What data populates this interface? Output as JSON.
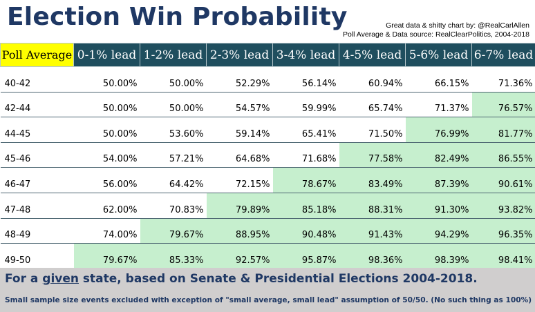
{
  "title": "Election Win Probability",
  "credit": {
    "line1": "Great data & shitty chart by: @RealCarlAllen",
    "line2": "Poll Average & Data source: RealClearPolitics, 2004-2018"
  },
  "colors": {
    "title": "#1f3864",
    "header_bg": "#1f4e5e",
    "corner_bg": "#ffff00",
    "highlight": "#c6efce",
    "footer_bg": "#d0cece"
  },
  "chart_data": {
    "type": "table",
    "title": "Election Win Probability",
    "row_header": "Poll Average",
    "columns": [
      "0-1% lead",
      "1-2% lead",
      "2-3% lead",
      "3-4% lead",
      "4-5% lead",
      "5-6% lead",
      "6-7% lead"
    ],
    "rows": [
      {
        "label": "40-42",
        "values": [
          "50.00%",
          "50.00%",
          "52.29%",
          "56.14%",
          "60.94%",
          "66.15%",
          "71.36%"
        ],
        "green_from": 7
      },
      {
        "label": "42-44",
        "values": [
          "50.00%",
          "50.00%",
          "54.57%",
          "59.99%",
          "65.74%",
          "71.37%",
          "76.57%"
        ],
        "green_from": 6
      },
      {
        "label": "44-45",
        "values": [
          "50.00%",
          "53.60%",
          "59.14%",
          "65.41%",
          "71.50%",
          "76.99%",
          "81.77%"
        ],
        "green_from": 5
      },
      {
        "label": "45-46",
        "values": [
          "54.00%",
          "57.21%",
          "64.68%",
          "71.68%",
          "77.58%",
          "82.49%",
          "86.55%"
        ],
        "green_from": 4
      },
      {
        "label": "46-47",
        "values": [
          "56.00%",
          "64.42%",
          "72.15%",
          "78.67%",
          "83.49%",
          "87.39%",
          "90.61%"
        ],
        "green_from": 3
      },
      {
        "label": "47-48",
        "values": [
          "62.00%",
          "70.83%",
          "79.89%",
          "85.18%",
          "88.31%",
          "91.30%",
          "93.82%"
        ],
        "green_from": 2
      },
      {
        "label": "48-49",
        "values": [
          "74.00%",
          "79.67%",
          "88.95%",
          "90.48%",
          "91.43%",
          "94.29%",
          "96.35%"
        ],
        "green_from": 1
      },
      {
        "label": "49-50",
        "values": [
          "79.67%",
          "85.33%",
          "92.57%",
          "95.87%",
          "98.36%",
          "98.39%",
          "98.41%"
        ],
        "green_from": 0
      }
    ]
  },
  "footer": {
    "main_prefix": "For a ",
    "main_underlined": "given",
    "main_suffix": " state, based on Senate & Presidential Elections 2004-2018.",
    "note": "Small sample size events excluded with exception of \"small average, small lead\" assumption of 50/50. (No such thing as 100%)"
  }
}
